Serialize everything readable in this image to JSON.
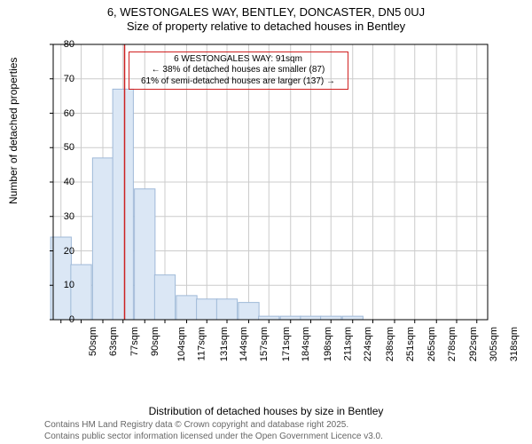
{
  "title_line1": "6, WESTONGALES WAY, BENTLEY, DONCASTER, DN5 0UJ",
  "title_line2": "Size of property relative to detached houses in Bentley",
  "ylabel": "Number of detached properties",
  "xlabel": "Distribution of detached houses by size in Bentley",
  "annotation": {
    "line1": "6 WESTONGALES WAY: 91sqm",
    "line2": "← 38% of detached houses are smaller (87)",
    "line3": "61% of semi-detached houses are larger (137) →"
  },
  "footer_line1": "Contains HM Land Registry data © Crown copyright and database right 2025.",
  "footer_line2": "Contains public sector information licensed under the Open Government Licence v3.0.",
  "chart": {
    "type": "histogram",
    "background_color": "#ffffff",
    "plot_border_color": "#000000",
    "grid_color": "#cccccc",
    "bar_fill": "#dbe7f5",
    "bar_stroke": "#9fb9d8",
    "ref_line_color": "#cc2222",
    "ref_line_x": 91,
    "annot_border_color": "#d02020",
    "xlim": [
      45,
      325
    ],
    "ylim": [
      0,
      80
    ],
    "yticks": [
      0,
      10,
      20,
      30,
      40,
      50,
      60,
      70,
      80
    ],
    "xticks": [
      50,
      63,
      77,
      90,
      104,
      117,
      131,
      144,
      157,
      171,
      184,
      198,
      211,
      224,
      238,
      251,
      265,
      278,
      292,
      305,
      318
    ],
    "xtick_suffix": "sqm",
    "bar_width_units": 13.3,
    "bars": [
      {
        "x": 50,
        "y": 24
      },
      {
        "x": 63,
        "y": 16
      },
      {
        "x": 77,
        "y": 47
      },
      {
        "x": 90,
        "y": 67
      },
      {
        "x": 104,
        "y": 38
      },
      {
        "x": 117,
        "y": 13
      },
      {
        "x": 131,
        "y": 7
      },
      {
        "x": 144,
        "y": 6
      },
      {
        "x": 157,
        "y": 6
      },
      {
        "x": 171,
        "y": 5
      },
      {
        "x": 184,
        "y": 1
      },
      {
        "x": 198,
        "y": 1
      },
      {
        "x": 211,
        "y": 1
      },
      {
        "x": 224,
        "y": 1
      },
      {
        "x": 238,
        "y": 1
      },
      {
        "x": 251,
        "y": 0
      },
      {
        "x": 265,
        "y": 0
      },
      {
        "x": 278,
        "y": 0
      },
      {
        "x": 292,
        "y": 0
      },
      {
        "x": 305,
        "y": 0
      },
      {
        "x": 318,
        "y": 0
      }
    ],
    "label_fontsize": 12,
    "tick_fontsize": 11,
    "title_fontsize": 13
  }
}
